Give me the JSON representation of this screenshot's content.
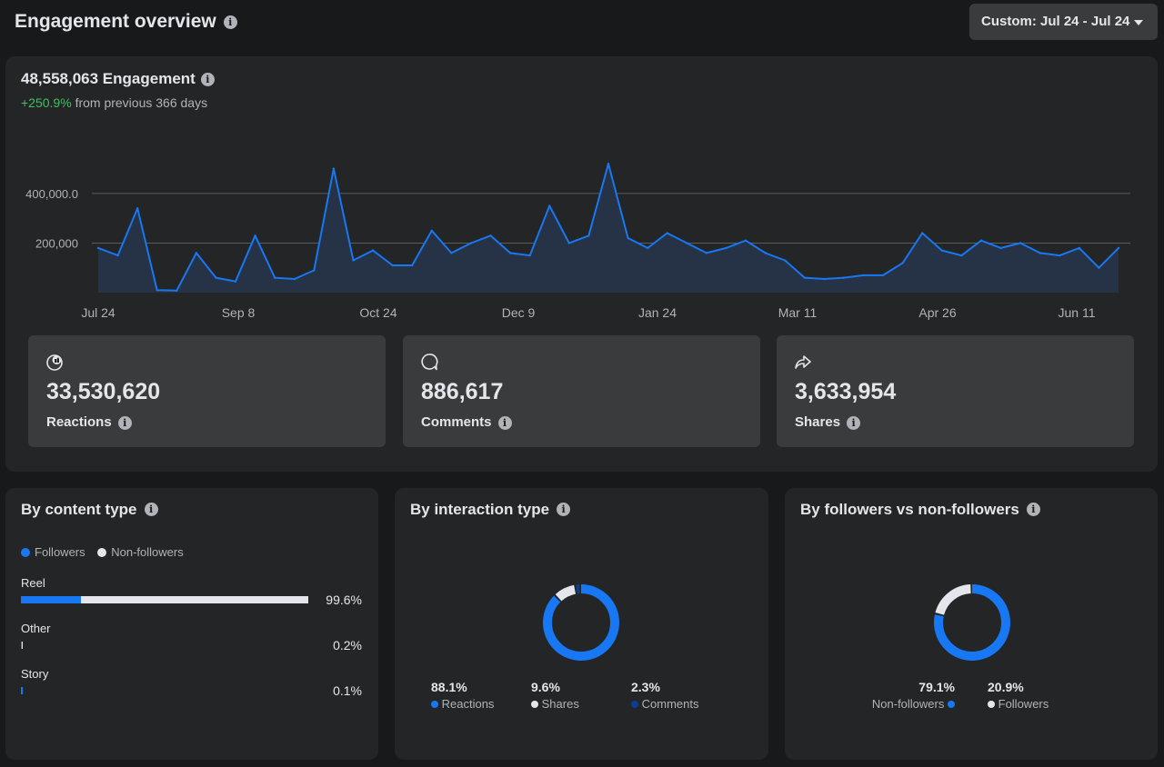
{
  "header": {
    "title": "Engagement overview",
    "date_range_label": "Custom: Jul 24 - Jul 24"
  },
  "engagement": {
    "total_label": "48,558,063 Engagement",
    "change_pct": "+250.9%",
    "change_text": "from previous 366 days"
  },
  "chart_data": {
    "type": "area",
    "y_ticks": [
      "400,000.0",
      "200,000"
    ],
    "ylim": [
      0,
      550000
    ],
    "x_tick_labels": [
      "Jul 24",
      "Sep 8",
      "Oct 24",
      "Dec 9",
      "Jan 24",
      "Mar 11",
      "Apr 26",
      "Jun 11"
    ],
    "x": [
      "Jul 24",
      "Jul 31",
      "Aug 7",
      "Aug 14",
      "Aug 21",
      "Aug 28",
      "Sep 4",
      "Sep 11",
      "Sep 18",
      "Sep 25",
      "Oct 2",
      "Oct 9",
      "Oct 16",
      "Oct 23",
      "Oct 30",
      "Nov 6",
      "Nov 13",
      "Nov 20",
      "Nov 27",
      "Dec 4",
      "Dec 11",
      "Dec 18",
      "Dec 25",
      "Jan 1",
      "Jan 8",
      "Jan 15",
      "Jan 22",
      "Jan 29",
      "Feb 5",
      "Feb 12",
      "Feb 19",
      "Feb 26",
      "Mar 4",
      "Mar 11",
      "Mar 18",
      "Mar 25",
      "Apr 1",
      "Apr 8",
      "Apr 15",
      "Apr 22",
      "Apr 29",
      "May 6",
      "May 13",
      "May 20",
      "May 27",
      "Jun 3",
      "Jun 10",
      "Jun 17",
      "Jun 24",
      "Jul 1",
      "Jul 8",
      "Jul 15",
      "Jul 22"
    ],
    "values": [
      180000,
      150000,
      340000,
      10000,
      8000,
      160000,
      60000,
      45000,
      230000,
      60000,
      55000,
      90000,
      500000,
      130000,
      170000,
      110000,
      110000,
      250000,
      160000,
      200000,
      230000,
      160000,
      150000,
      350000,
      200000,
      230000,
      520000,
      220000,
      180000,
      240000,
      200000,
      160000,
      180000,
      210000,
      160000,
      130000,
      60000,
      55000,
      60000,
      70000,
      70000,
      120000,
      240000,
      170000,
      150000,
      210000,
      180000,
      200000,
      160000,
      150000,
      180000,
      100000,
      180000
    ],
    "color": "#1877f2",
    "fill": "#263245"
  },
  "metrics": [
    {
      "icon": "reactions-icon",
      "value": "33,530,620",
      "label": "Reactions"
    },
    {
      "icon": "comments-icon",
      "value": "886,617",
      "label": "Comments"
    },
    {
      "icon": "shares-icon",
      "value": "3,633,954",
      "label": "Shares"
    }
  ],
  "content_type": {
    "title": "By content type",
    "legend": [
      "Followers",
      "Non-followers"
    ],
    "rows": [
      {
        "name": "Reel",
        "pct": "99.6%",
        "followers_share": 0.21,
        "total": 0.996
      },
      {
        "name": "Other",
        "pct": "0.2%",
        "followers_share": 0.5,
        "total": 0.002
      },
      {
        "name": "Story",
        "pct": "0.1%",
        "followers_share": 1,
        "total": 0.001
      }
    ]
  },
  "interaction_type": {
    "title": "By interaction type",
    "items": [
      {
        "pct": "88.1%",
        "label": "Reactions",
        "color": "#1877f2",
        "value": 0.881
      },
      {
        "pct": "9.6%",
        "label": "Shares",
        "color": "#e4e6eb",
        "value": 0.096
      },
      {
        "pct": "2.3%",
        "label": "Comments",
        "color": "#0b3d91",
        "value": 0.023
      }
    ]
  },
  "followers": {
    "title": "By followers vs non-followers",
    "items": [
      {
        "pct": "79.1%",
        "label": "Non-followers",
        "color": "#1877f2",
        "value": 0.791
      },
      {
        "pct": "20.9%",
        "label": "Followers",
        "color": "#e4e6eb",
        "value": 0.209
      }
    ]
  },
  "colors": {
    "accent": "#1877f2",
    "positive": "#45bd62",
    "panel": "#242526",
    "card": "#3a3b3c"
  }
}
